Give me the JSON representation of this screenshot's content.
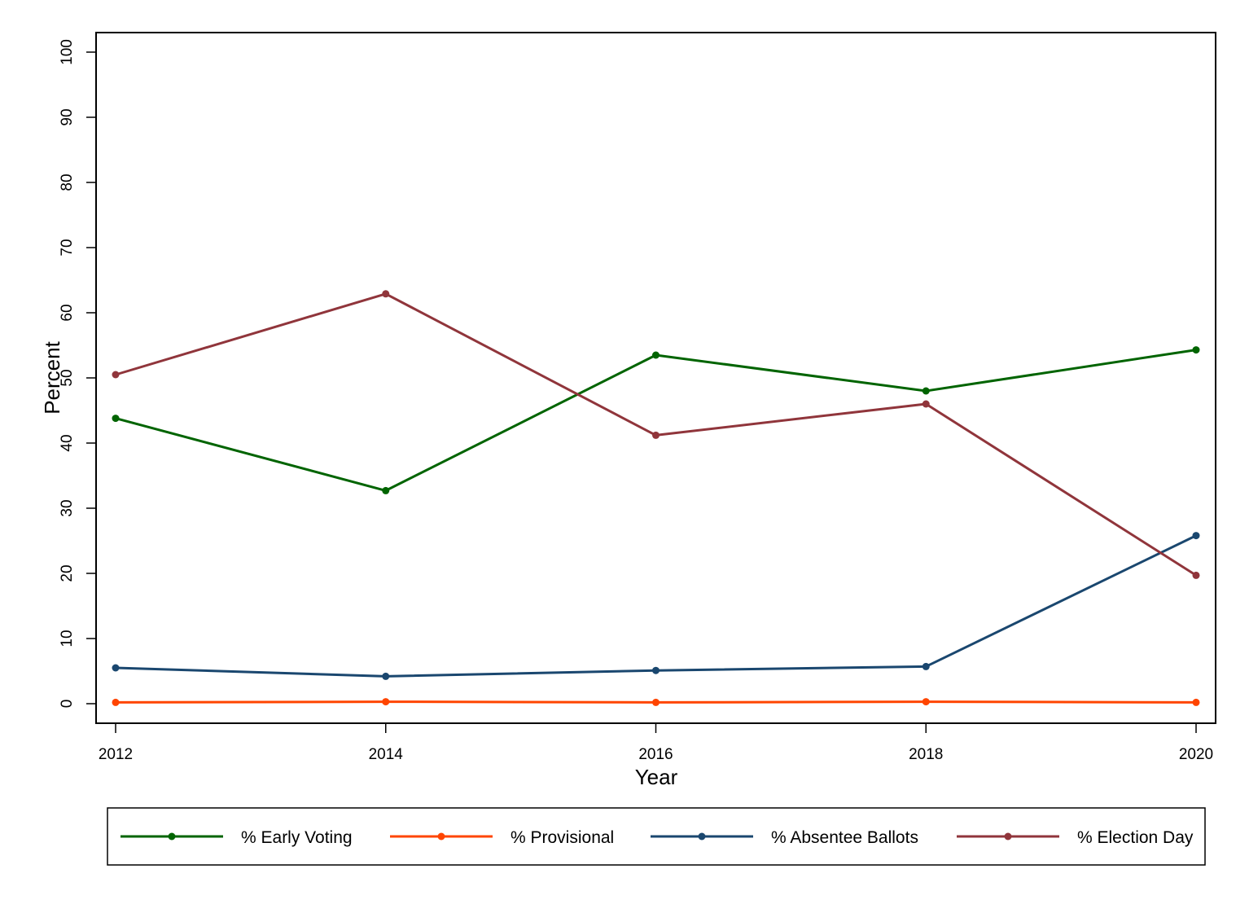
{
  "chart_data": {
    "type": "line",
    "x": [
      2012,
      2014,
      2016,
      2018,
      2020
    ],
    "xticks": [
      "2012",
      "2014",
      "2016",
      "2018",
      "2020"
    ],
    "yticks": [
      "0",
      "10",
      "20",
      "30",
      "40",
      "50",
      "60",
      "70",
      "80",
      "90",
      "100"
    ],
    "xlabel": "Year",
    "ylabel": "Percent",
    "xlim": [
      2012,
      2020
    ],
    "ylim": [
      0,
      100
    ],
    "grid": false,
    "legend_position": "bottom",
    "series": [
      {
        "name": "% Early Voting",
        "color": "#006400",
        "values": [
          43.8,
          32.7,
          53.5,
          48.0,
          54.3
        ]
      },
      {
        "name": "% Provisional",
        "color": "#ff4500",
        "values": [
          0.2,
          0.3,
          0.2,
          0.3,
          0.2
        ]
      },
      {
        "name": "% Absentee Ballots",
        "color": "#1a476f",
        "values": [
          5.5,
          4.2,
          5.1,
          5.7,
          25.8
        ]
      },
      {
        "name": "% Election Day",
        "color": "#90353b",
        "values": [
          50.5,
          62.9,
          41.2,
          46.0,
          19.7
        ]
      }
    ]
  }
}
